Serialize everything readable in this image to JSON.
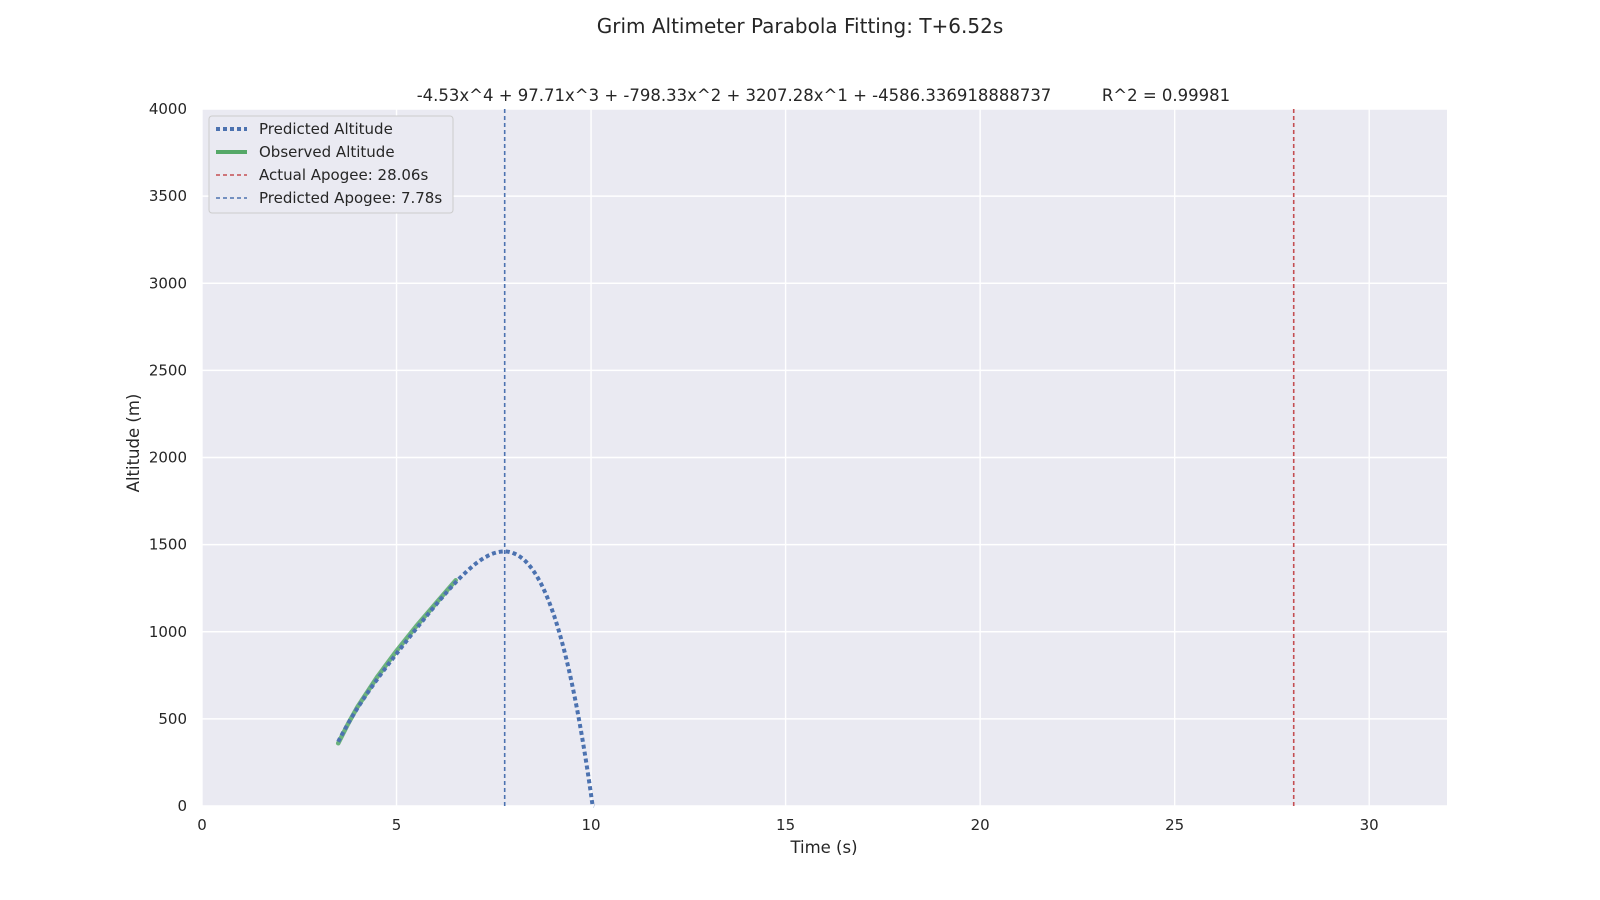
{
  "chart_data": {
    "type": "line",
    "title": "Grim Altimeter Parabola Fitting: T+6.52s",
    "subtitle_equation": "-4.53x^4 + 97.71x^3 + -798.33x^2 + 3207.28x^1 + -4586.336918888737",
    "subtitle_r2": "R^2 = 0.99981",
    "xlabel": "Time (s)",
    "ylabel": "Altitude (m)",
    "xlim": [
      0,
      32
    ],
    "ylim": [
      0,
      4000
    ],
    "xticks": [
      0,
      5,
      10,
      15,
      20,
      25,
      30
    ],
    "yticks": [
      0,
      500,
      1000,
      1500,
      2000,
      2500,
      3000,
      3500,
      4000
    ],
    "grid": true,
    "legend_position": "top-left",
    "series": [
      {
        "name": "Predicted Altitude",
        "style": "dotted",
        "color": "#4c72b0",
        "polynomial": [
          -4.53,
          97.71,
          -798.33,
          3207.28,
          -4586.336918888737
        ],
        "x_range": [
          3.5,
          10.08
        ]
      },
      {
        "name": "Observed Altitude",
        "style": "solid",
        "color": "#55a868",
        "x": [
          3.5,
          3.75,
          4.0,
          4.5,
          5.0,
          5.5,
          6.0,
          6.52
        ],
        "y": [
          360,
          470,
          570,
          740,
          890,
          1030,
          1160,
          1295
        ]
      }
    ],
    "vlines": [
      {
        "name": "Actual Apogee: 28.06s",
        "x": 28.06,
        "color": "#c44e52",
        "style": "dashed"
      },
      {
        "name": "Predicted Apogee: 7.78s",
        "x": 7.78,
        "color": "#4c72b0",
        "style": "dashed"
      }
    ]
  }
}
